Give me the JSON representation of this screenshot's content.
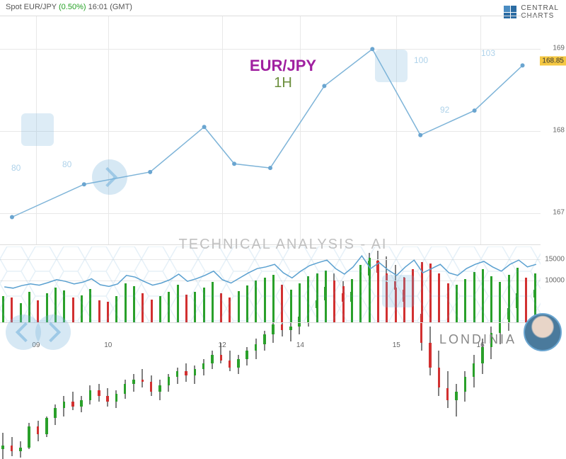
{
  "header": {
    "instrument": "Spot EUR/JPY",
    "pct": "(0.50%)",
    "time": "16:01 (GMT)"
  },
  "logo": {
    "line1": "CENTRAL",
    "line2": "CHARTS"
  },
  "pair_label": {
    "pair": "EUR/JPY",
    "timeframe": "1H"
  },
  "tech_label": "TECHNICAL  ANALYSIS - AI",
  "londinia": "LONDINIA",
  "price_tag": "168.85",
  "watermark_numbers": {
    "a": "80",
    "b": "80",
    "c": "100",
    "d": "92",
    "e": "103"
  },
  "main_chart": {
    "type": "candlestick",
    "ylim": [
      166.6,
      169.4
    ],
    "yticks": [
      167,
      168,
      169
    ],
    "xlim": [
      0,
      180
    ],
    "xticks": [
      12,
      36,
      74,
      100,
      132,
      160
    ],
    "xticklabels": [
      "09",
      "10",
      "12",
      "14",
      "15",
      "16"
    ],
    "grid_color": "#e8e8e8",
    "up_color": "#2aa02a",
    "down_color": "#d23030",
    "wick_color": "#000000",
    "candle_width": 3.5,
    "candles": [
      [
        166.9,
        167.1,
        166.78,
        166.95
      ],
      [
        166.95,
        167.05,
        166.82,
        166.88
      ],
      [
        166.88,
        167.0,
        166.8,
        166.92
      ],
      [
        166.92,
        167.22,
        166.9,
        167.18
      ],
      [
        167.18,
        167.25,
        167.0,
        167.08
      ],
      [
        167.08,
        167.3,
        167.05,
        167.28
      ],
      [
        167.28,
        167.45,
        167.2,
        167.4
      ],
      [
        167.4,
        167.55,
        167.3,
        167.48
      ],
      [
        167.48,
        167.6,
        167.38,
        167.42
      ],
      [
        167.42,
        167.55,
        167.35,
        167.5
      ],
      [
        167.5,
        167.68,
        167.45,
        167.62
      ],
      [
        167.62,
        167.7,
        167.48,
        167.55
      ],
      [
        167.55,
        167.65,
        167.42,
        167.48
      ],
      [
        167.48,
        167.62,
        167.4,
        167.58
      ],
      [
        167.58,
        167.75,
        167.52,
        167.7
      ],
      [
        167.7,
        167.82,
        167.6,
        167.75
      ],
      [
        167.75,
        167.88,
        167.65,
        167.72
      ],
      [
        167.72,
        167.8,
        167.55,
        167.6
      ],
      [
        167.6,
        167.75,
        167.5,
        167.68
      ],
      [
        167.68,
        167.82,
        167.6,
        167.78
      ],
      [
        167.78,
        167.9,
        167.7,
        167.85
      ],
      [
        167.85,
        167.95,
        167.72,
        167.8
      ],
      [
        167.8,
        167.92,
        167.7,
        167.88
      ],
      [
        167.88,
        168.0,
        167.8,
        167.95
      ],
      [
        167.95,
        168.1,
        167.88,
        168.05
      ],
      [
        168.05,
        168.2,
        167.95,
        167.98
      ],
      [
        167.98,
        168.1,
        167.85,
        167.9
      ],
      [
        167.9,
        168.05,
        167.82,
        168.0
      ],
      [
        168.0,
        168.15,
        167.92,
        168.1
      ],
      [
        168.1,
        168.25,
        168.0,
        168.18
      ],
      [
        168.18,
        168.35,
        168.1,
        168.3
      ],
      [
        168.3,
        168.48,
        168.2,
        168.42
      ],
      [
        168.42,
        168.55,
        168.28,
        168.35
      ],
      [
        168.35,
        168.48,
        168.22,
        168.4
      ],
      [
        168.4,
        168.58,
        168.3,
        168.52
      ],
      [
        168.52,
        168.7,
        168.4,
        168.62
      ],
      [
        168.62,
        168.8,
        168.5,
        168.72
      ],
      [
        168.72,
        168.95,
        168.6,
        168.88
      ],
      [
        168.88,
        169.05,
        168.72,
        168.8
      ],
      [
        168.8,
        168.95,
        168.62,
        168.7
      ],
      [
        168.7,
        168.88,
        168.55,
        168.82
      ],
      [
        168.82,
        169.1,
        168.7,
        169.02
      ],
      [
        169.02,
        169.3,
        168.9,
        169.2
      ],
      [
        169.2,
        169.32,
        168.95,
        169.05
      ],
      [
        169.05,
        169.25,
        168.85,
        168.95
      ],
      [
        168.95,
        169.15,
        168.75,
        168.85
      ],
      [
        168.85,
        169.0,
        168.6,
        168.7
      ],
      [
        168.7,
        168.9,
        168.45,
        168.55
      ],
      [
        168.55,
        168.75,
        168.1,
        168.2
      ],
      [
        168.2,
        168.4,
        167.8,
        167.9
      ],
      [
        167.9,
        168.1,
        167.55,
        167.65
      ],
      [
        167.65,
        167.85,
        167.4,
        167.5
      ],
      [
        167.5,
        167.7,
        167.3,
        167.6
      ],
      [
        167.6,
        167.85,
        167.48,
        167.78
      ],
      [
        167.78,
        168.05,
        167.65,
        167.95
      ],
      [
        167.95,
        168.25,
        167.82,
        168.15
      ],
      [
        168.15,
        168.4,
        168.0,
        168.32
      ],
      [
        168.32,
        168.55,
        168.18,
        168.48
      ],
      [
        168.48,
        168.7,
        168.35,
        168.62
      ],
      [
        168.62,
        168.88,
        168.5,
        168.8
      ],
      [
        168.8,
        168.98,
        168.65,
        168.75
      ],
      [
        168.75,
        168.92,
        168.6,
        168.85
      ]
    ],
    "indicator_line": {
      "color": "#7eb4d8",
      "width": 1.5,
      "marker_color": "#6aa5d0",
      "marker_radius": 3,
      "points": [
        [
          4,
          166.95
        ],
        [
          28,
          167.35
        ],
        [
          50,
          167.5
        ],
        [
          68,
          168.05
        ],
        [
          78,
          167.6
        ],
        [
          90,
          167.55
        ],
        [
          108,
          168.55
        ],
        [
          124,
          169.0
        ],
        [
          140,
          167.95
        ],
        [
          158,
          168.25
        ],
        [
          174,
          168.8
        ]
      ]
    }
  },
  "volume_chart": {
    "type": "bar+line",
    "ylim": [
      0,
      18000
    ],
    "yticks": [
      10000,
      15000
    ],
    "up_color": "#2aa02a",
    "down_color": "#d23030",
    "line_color": "#5aa0d0",
    "bars": [
      6200,
      5800,
      4500,
      7200,
      5100,
      6800,
      8200,
      7500,
      5900,
      6400,
      7800,
      5200,
      4800,
      6100,
      9200,
      8500,
      6800,
      5400,
      6200,
      7100,
      8800,
      6500,
      7200,
      8100,
      9500,
      6800,
      5900,
      7400,
      8600,
      9800,
      10500,
      11200,
      8900,
      7600,
      9200,
      10800,
      11500,
      12200,
      9800,
      8500,
      10200,
      13500,
      15200,
      11800,
      9500,
      8200,
      10500,
      12500,
      14200,
      13800,
      11500,
      9200,
      8800,
      10200,
      11800,
      12500,
      10800,
      9500,
      11200,
      12800,
      10500,
      11500
    ],
    "line": [
      8500,
      8200,
      8800,
      9200,
      8900,
      9500,
      10200,
      9800,
      9200,
      9600,
      10400,
      9000,
      8600,
      9200,
      11200,
      10800,
      9800,
      8900,
      9400,
      10200,
      11500,
      9800,
      10400,
      11200,
      12200,
      10200,
      9400,
      10600,
      11800,
      12800,
      13200,
      13800,
      11800,
      10600,
      12200,
      13500,
      14200,
      14800,
      12800,
      11500,
      13200,
      15800,
      12800,
      14200,
      12500,
      11200,
      13200,
      14800,
      11800,
      12800,
      13800,
      11800,
      11200,
      12800,
      13800,
      14500,
      13200,
      12200,
      13800,
      14800,
      13200,
      13800
    ]
  }
}
